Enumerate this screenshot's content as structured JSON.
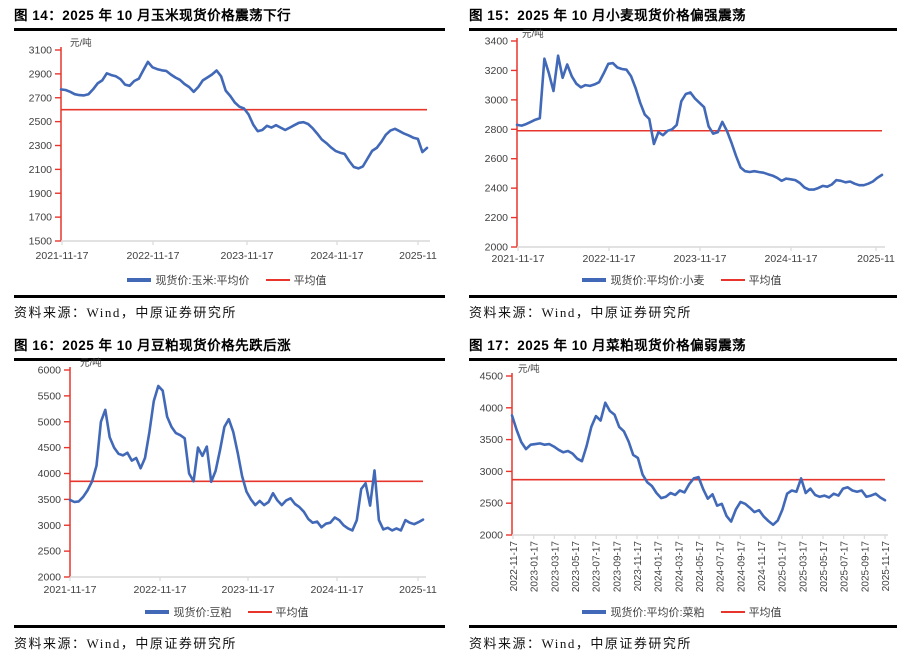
{
  "page": {
    "source_text": "资料来源：Wind，中原证券研究所"
  },
  "colors": {
    "series_blue": "#4169b8",
    "series_red": "#e8352c",
    "axis_gray": "#d9d9d9",
    "tick_label": "#404040"
  },
  "chart_data": [
    {
      "type": "line",
      "title": "图 14：2025 年 10 月玉米现货价格震荡下行",
      "unit": "元/吨",
      "legend": {
        "series_label": "现货价:玉米:平均价",
        "average_label": "平均值"
      },
      "ylim": [
        1500,
        3100
      ],
      "y_step": 200,
      "x_tick_labels": [
        "2021-11-17",
        "2022-11-17",
        "2023-11-17",
        "2024-11-17",
        "2025-11"
      ],
      "average_value": 2600,
      "values": [
        2770,
        2765,
        2750,
        2730,
        2722,
        2720,
        2730,
        2770,
        2820,
        2845,
        2905,
        2890,
        2880,
        2855,
        2810,
        2800,
        2840,
        2860,
        2930,
        3000,
        2955,
        2940,
        2930,
        2925,
        2895,
        2870,
        2850,
        2815,
        2790,
        2750,
        2790,
        2845,
        2870,
        2895,
        2928,
        2880,
        2760,
        2715,
        2660,
        2625,
        2610,
        2560,
        2475,
        2420,
        2430,
        2465,
        2450,
        2470,
        2450,
        2430,
        2450,
        2470,
        2490,
        2495,
        2480,
        2445,
        2400,
        2350,
        2320,
        2285,
        2255,
        2240,
        2230,
        2170,
        2120,
        2108,
        2125,
        2190,
        2255,
        2280,
        2330,
        2390,
        2425,
        2440,
        2420,
        2400,
        2385,
        2365,
        2355,
        2245,
        2280
      ]
    },
    {
      "type": "line",
      "title": "图 15：2025 年 10 月小麦现货价格偏强震荡",
      "unit": "元/吨",
      "legend": {
        "series_label": "现货价:平均价:小麦",
        "average_label": "平均值"
      },
      "ylim": [
        2000,
        3400
      ],
      "y_step": 200,
      "x_tick_labels": [
        "2021-11-17",
        "2022-11-17",
        "2023-11-17",
        "2024-11-17",
        "2025-11"
      ],
      "average_value": 2790,
      "values": [
        2830,
        2825,
        2835,
        2850,
        2865,
        2875,
        3280,
        3180,
        3060,
        3300,
        3150,
        3240,
        3160,
        3110,
        3085,
        3100,
        3095,
        3105,
        3120,
        3180,
        3245,
        3250,
        3220,
        3210,
        3205,
        3160,
        3080,
        2980,
        2900,
        2870,
        2700,
        2780,
        2760,
        2790,
        2800,
        2830,
        2990,
        3040,
        3050,
        3010,
        2980,
        2950,
        2820,
        2770,
        2780,
        2850,
        2790,
        2710,
        2620,
        2540,
        2515,
        2510,
        2515,
        2510,
        2505,
        2495,
        2485,
        2470,
        2450,
        2465,
        2460,
        2455,
        2435,
        2405,
        2390,
        2390,
        2400,
        2415,
        2410,
        2425,
        2455,
        2450,
        2440,
        2445,
        2430,
        2420,
        2420,
        2430,
        2445,
        2470,
        2490
      ]
    },
    {
      "type": "line",
      "title": "图 16：2025 年 10 月豆粕现货价格先跌后涨",
      "unit": "元/吨",
      "legend": {
        "series_label": "现货价:豆粕",
        "average_label": "平均值"
      },
      "ylim": [
        2000,
        6000
      ],
      "y_step": 500,
      "x_tick_labels": [
        "2021-11-17",
        "2022-11-17",
        "2023-11-17",
        "2024-11-17",
        "2025-11"
      ],
      "average_value": 3850,
      "values": [
        3490,
        3450,
        3460,
        3550,
        3680,
        3850,
        4150,
        5000,
        5230,
        4700,
        4500,
        4380,
        4350,
        4400,
        4250,
        4300,
        4100,
        4300,
        4800,
        5400,
        5690,
        5600,
        5100,
        4900,
        4780,
        4740,
        4680,
        4000,
        3850,
        4500,
        4340,
        4520,
        3840,
        4050,
        4450,
        4900,
        5050,
        4800,
        4400,
        3950,
        3650,
        3500,
        3390,
        3470,
        3390,
        3450,
        3620,
        3480,
        3390,
        3480,
        3520,
        3410,
        3350,
        3260,
        3120,
        3050,
        3070,
        2960,
        3030,
        3050,
        3150,
        3100,
        3000,
        2940,
        2900,
        3100,
        3700,
        3810,
        3380,
        4060,
        3100,
        2920,
        2950,
        2900,
        2940,
        2900,
        3100,
        3050,
        3020,
        3060,
        3110
      ]
    },
    {
      "type": "line",
      "title": "图 17：2025 年 10 月菜粕现货价格偏弱震荡",
      "unit": "元/吨",
      "legend": {
        "series_label": "现货价:平均价:菜粕",
        "average_label": "平均值"
      },
      "ylim": [
        2000,
        4500
      ],
      "y_step": 500,
      "x_tick_labels": [
        "2022-11-17",
        "2023-01-17",
        "2023-03-17",
        "2023-05-17",
        "2023-07-17",
        "2023-09-17",
        "2023-11-17",
        "2024-01-17",
        "2024-03-17",
        "2024-05-17",
        "2024-07-17",
        "2024-09-17",
        "2024-11-17",
        "2025-01-17",
        "2025-03-17",
        "2025-05-17",
        "2025-07-17",
        "2025-09-17",
        "2025-11-17"
      ],
      "average_value": 2870,
      "values": [
        3880,
        3650,
        3460,
        3350,
        3420,
        3430,
        3440,
        3420,
        3430,
        3390,
        3340,
        3300,
        3320,
        3280,
        3200,
        3160,
        3400,
        3700,
        3870,
        3800,
        4080,
        3950,
        3890,
        3700,
        3630,
        3470,
        3260,
        3210,
        2950,
        2830,
        2770,
        2660,
        2580,
        2600,
        2660,
        2630,
        2700,
        2670,
        2800,
        2890,
        2910,
        2720,
        2570,
        2640,
        2460,
        2490,
        2300,
        2210,
        2400,
        2520,
        2490,
        2430,
        2360,
        2390,
        2290,
        2220,
        2160,
        2230,
        2400,
        2650,
        2700,
        2680,
        2890,
        2660,
        2730,
        2630,
        2600,
        2620,
        2590,
        2650,
        2620,
        2730,
        2750,
        2700,
        2680,
        2700,
        2600,
        2620,
        2650,
        2590,
        2545
      ]
    }
  ]
}
